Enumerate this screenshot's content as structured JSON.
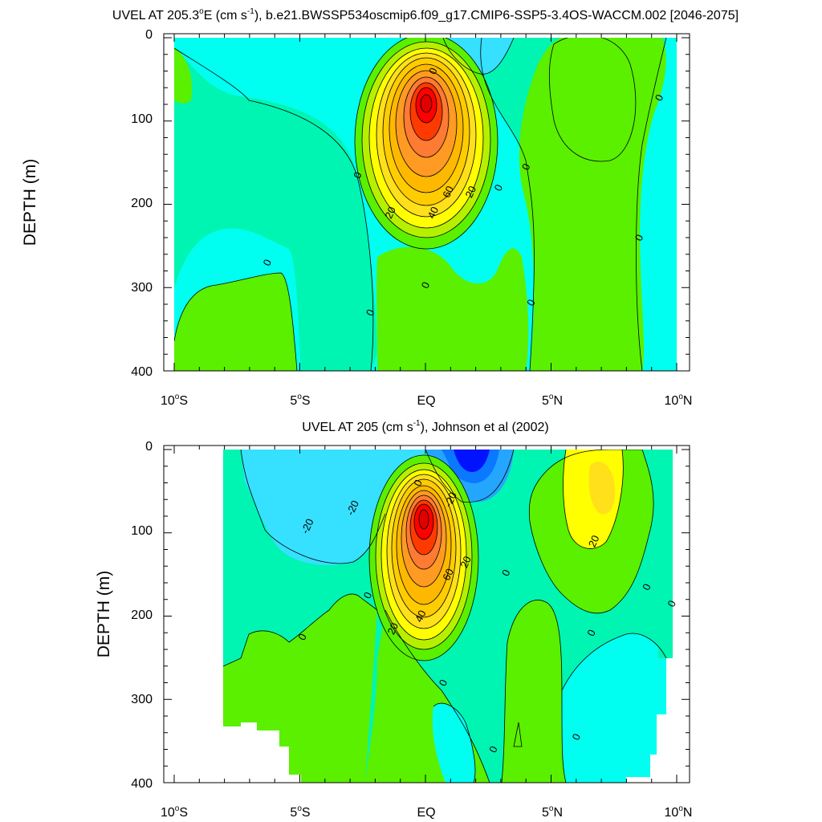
{
  "chart_data": [
    {
      "type": "contour",
      "title": {
        "prefix": "UVEL AT 205.3",
        "sup1": "o",
        "mid": "E (cm s",
        "sup2": "-1",
        "suffix": "), b.e21.BWSSP534oscmip6.f09_g17.CMIP6-SSP5-3.4OS-WACCM.002 [2046-2075]"
      },
      "ylabel": "DEPTH (m)",
      "xlim": [
        -10,
        10
      ],
      "ylim": [
        0,
        400
      ],
      "y_inverted": true,
      "x_ticks": [
        {
          "value": -10,
          "num": "10",
          "deg": "o",
          "hem": "S"
        },
        {
          "value": -5,
          "num": "5",
          "deg": "o",
          "hem": "S"
        },
        {
          "value": 0,
          "num": "EQ",
          "deg": "",
          "hem": ""
        },
        {
          "value": 5,
          "num": "5",
          "deg": "o",
          "hem": "N"
        },
        {
          "value": 10,
          "num": "10",
          "deg": "o",
          "hem": "N"
        }
      ],
      "y_ticks": [
        "0",
        "100",
        "200",
        "300",
        "400"
      ],
      "contour_interval": 10,
      "core": {
        "lat": 0,
        "depth": 130,
        "max_velocity": 90
      },
      "contour_labels": [
        {
          "text": "0",
          "lat": 0.3,
          "depth": 40
        },
        {
          "text": "0",
          "lat": -2.7,
          "depth": 165
        },
        {
          "text": "0",
          "lat": 2.9,
          "depth": 180
        },
        {
          "text": "0",
          "lat": 4.0,
          "depth": 155
        },
        {
          "text": "0",
          "lat": 9.3,
          "depth": 72
        },
        {
          "text": "0",
          "lat": 8.5,
          "depth": 240
        },
        {
          "text": "0",
          "lat": -6.3,
          "depth": 270
        },
        {
          "text": "0",
          "lat": 0.0,
          "depth": 297
        },
        {
          "text": "0",
          "lat": 4.2,
          "depth": 318
        },
        {
          "text": "0",
          "lat": -2.2,
          "depth": 330
        },
        {
          "text": "20",
          "lat": 1.8,
          "depth": 185
        },
        {
          "text": "20",
          "lat": -1.4,
          "depth": 210
        },
        {
          "text": "40",
          "lat": 0.3,
          "depth": 210
        },
        {
          "text": "60",
          "lat": 0.9,
          "depth": 185
        }
      ]
    },
    {
      "type": "contour",
      "title": {
        "prefix": "UVEL AT 205 (cm s",
        "sup1": "-1",
        "suffix": "), Johnson et al (2002)"
      },
      "ylabel": "DEPTH (m)",
      "xlim": [
        -10,
        10
      ],
      "ylim": [
        0,
        400
      ],
      "y_inverted": true,
      "x_ticks": [
        {
          "value": -10,
          "num": "10",
          "deg": "o",
          "hem": "S"
        },
        {
          "value": -5,
          "num": "5",
          "deg": "o",
          "hem": "S"
        },
        {
          "value": 0,
          "num": "EQ",
          "deg": "",
          "hem": ""
        },
        {
          "value": 5,
          "num": "5",
          "deg": "o",
          "hem": "N"
        },
        {
          "value": 10,
          "num": "10",
          "deg": "o",
          "hem": "N"
        }
      ],
      "y_ticks": [
        "0",
        "100",
        "200",
        "300",
        "400"
      ],
      "contour_interval": 10,
      "core": {
        "lat": -0.2,
        "depth": 130,
        "max_velocity": 90
      },
      "contour_labels": [
        {
          "text": "0",
          "lat": -0.3,
          "depth": 40
        },
        {
          "text": "-20",
          "lat": 1.0,
          "depth": 60
        },
        {
          "text": "-20",
          "lat": -4.7,
          "depth": 92
        },
        {
          "text": "-20",
          "lat": -2.9,
          "depth": 70
        },
        {
          "text": "0",
          "lat": -2.3,
          "depth": 175
        },
        {
          "text": "0",
          "lat": 3.2,
          "depth": 148
        },
        {
          "text": "0",
          "lat": -4.9,
          "depth": 225
        },
        {
          "text": "0",
          "lat": 0.7,
          "depth": 280
        },
        {
          "text": "0",
          "lat": 6.6,
          "depth": 220
        },
        {
          "text": "0",
          "lat": 8.8,
          "depth": 165
        },
        {
          "text": "0",
          "lat": 9.8,
          "depth": 185
        },
        {
          "text": "0",
          "lat": 6.0,
          "depth": 345
        },
        {
          "text": "0",
          "lat": 2.7,
          "depth": 360
        },
        {
          "text": "20",
          "lat": 1.6,
          "depth": 135
        },
        {
          "text": "20",
          "lat": 6.7,
          "depth": 110
        },
        {
          "text": "20",
          "lat": -1.3,
          "depth": 215
        },
        {
          "text": "40",
          "lat": -0.2,
          "depth": 200
        },
        {
          "text": "60",
          "lat": 0.9,
          "depth": 150
        }
      ]
    }
  ],
  "color_levels": [
    "#0000ff",
    "#0a78ff",
    "#24a6ff",
    "#36e0ff",
    "#00fff0",
    "#00f5b2",
    "#19e854",
    "#5af000",
    "#b6f000",
    "#ffff00",
    "#ffe01a",
    "#ffb800",
    "#ff9a22",
    "#ff7a33",
    "#ff5722",
    "#ff3a00",
    "#ff0000"
  ]
}
